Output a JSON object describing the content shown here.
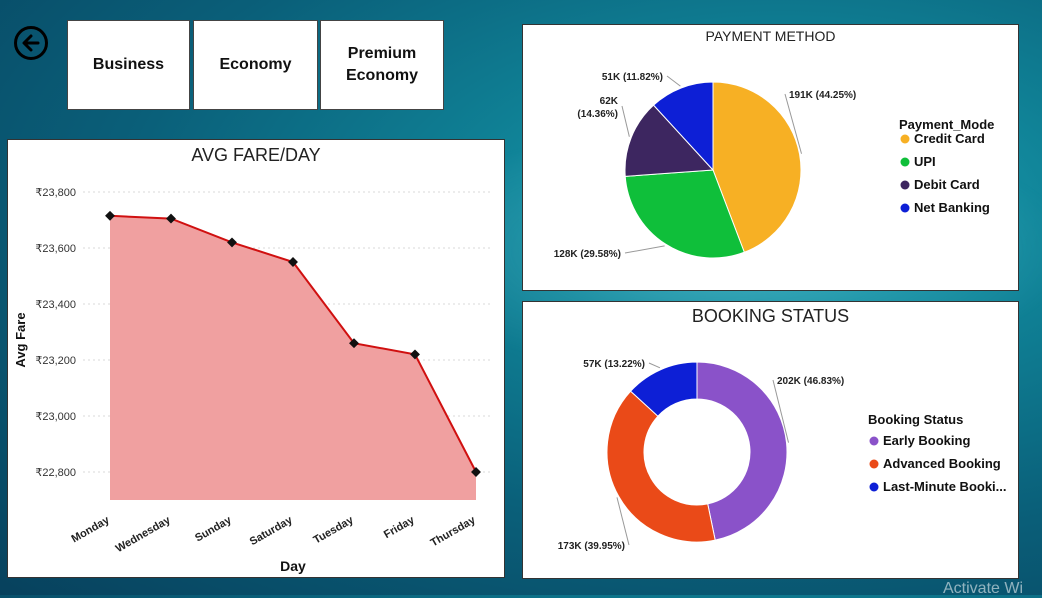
{
  "nav": {
    "buttons": [
      {
        "label": "Business"
      },
      {
        "label": "Economy"
      },
      {
        "label": "Premium Economy"
      }
    ]
  },
  "fare_chart": {
    "title": "AVG FARE/DAY",
    "xlabel": "Day",
    "ylabel": "Avg Fare",
    "yticks": [
      "₹22,800",
      "₹23,000",
      "₹23,200",
      "₹23,400",
      "₹23,600",
      "₹23,800"
    ]
  },
  "payment": {
    "title": "PAYMENT METHOD",
    "legend_title": "Payment_Mode",
    "labels": [
      "191K (44.25%)",
      "128K (29.58%)",
      "62K (14.36%)",
      "51K (11.82%)"
    ]
  },
  "booking": {
    "title": "BOOKING STATUS",
    "legend_title": "Booking Status",
    "legend_entries": [
      "Early Booking",
      "Advanced Booking",
      "Last-Minute Booki..."
    ],
    "labels": [
      "202K (46.83%)",
      "173K (39.95%)",
      "57K (13.22%)"
    ]
  },
  "watermark": "Activate Wi",
  "colors": {
    "area_fill": "#f0a0a0",
    "line": "#d01010",
    "credit_card": "#f7b024",
    "upi": "#0fbf3a",
    "debit_card": "#3d2660",
    "net_banking": "#0d1fd6",
    "early_booking": "#8a52c9",
    "advanced_booking": "#ea4a18",
    "last_minute_booking": "#0d1fd6"
  },
  "chart_data": [
    {
      "type": "area",
      "title": "AVG FARE/DAY",
      "xlabel": "Day",
      "ylabel": "Avg Fare",
      "categories": [
        "Monday",
        "Wednesday",
        "Sunday",
        "Saturday",
        "Tuesday",
        "Friday",
        "Thursday"
      ],
      "values": [
        23715,
        23705,
        23620,
        23550,
        23260,
        23220,
        22800
      ],
      "ylim": [
        22700,
        23850
      ],
      "grid": true
    },
    {
      "type": "pie",
      "title": "PAYMENT METHOD",
      "categories": [
        "Credit Card",
        "UPI",
        "Debit Card",
        "Net Banking"
      ],
      "values": [
        191,
        128,
        62,
        51
      ],
      "percentages": [
        44.25,
        29.58,
        14.36,
        11.82
      ],
      "legend": "right"
    },
    {
      "type": "pie",
      "subtype": "donut",
      "title": "BOOKING STATUS",
      "categories": [
        "Early Booking",
        "Advanced Booking",
        "Last-Minute Booki..."
      ],
      "values": [
        202,
        173,
        57
      ],
      "percentages": [
        46.83,
        39.95,
        13.22
      ],
      "legend": "right"
    }
  ]
}
